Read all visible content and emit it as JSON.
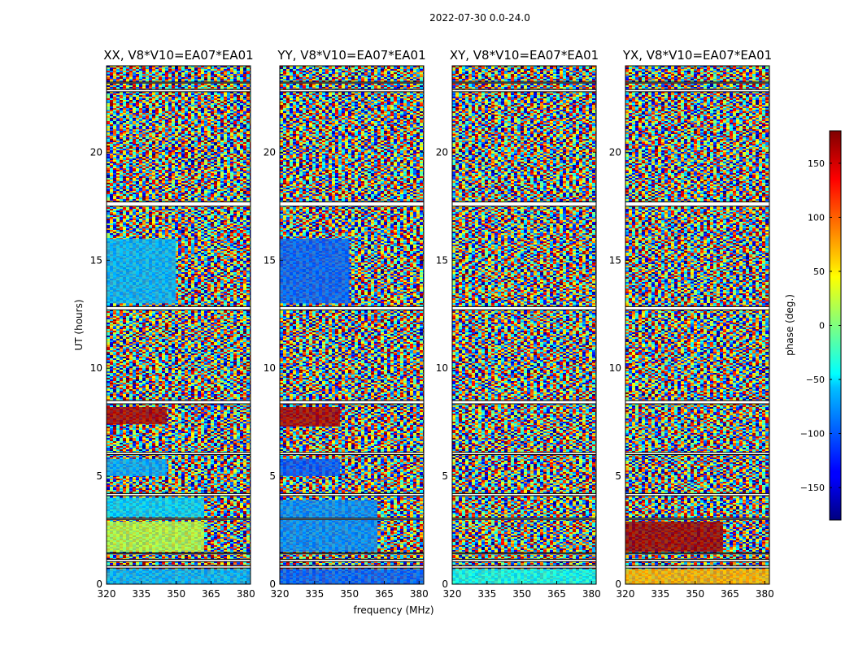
{
  "figure_title": "2022-07-30 0.0-24.0",
  "chart_data": {
    "type": "heatmap",
    "suptitle": "2022-07-30 0.0-24.0",
    "xlabel": "frequency (MHz)",
    "ylabel": "UT (hours)",
    "xlim": [
      320,
      382
    ],
    "ylim": [
      0,
      24
    ],
    "x_ticks": [
      320,
      335,
      350,
      365,
      380
    ],
    "y_ticks": [
      0,
      5,
      10,
      15,
      20
    ],
    "colorbar": {
      "label": "phase (deg.)",
      "range": [
        -180,
        180
      ],
      "ticks": [
        -150,
        -100,
        -50,
        0,
        50,
        100,
        150
      ],
      "colormap": "jet"
    },
    "panels": [
      {
        "title": "XX, V8*V10=EA07*EA01"
      },
      {
        "title": "YY, V8*V10=EA07*EA01"
      },
      {
        "title": "XY, V8*V10=EA07*EA01"
      },
      {
        "title": "YX, V8*V10=EA07*EA01"
      }
    ],
    "data_gaps_hours": [
      [
        0.75,
        0.85
      ],
      [
        1.05,
        1.15
      ],
      [
        1.4,
        1.45
      ],
      [
        3.0,
        3.05
      ],
      [
        4.1,
        4.2
      ],
      [
        6.0,
        6.1
      ],
      [
        8.35,
        8.5
      ],
      [
        12.7,
        12.85
      ],
      [
        17.5,
        17.7
      ],
      [
        22.8,
        22.9
      ],
      [
        23.2,
        23.25
      ]
    ],
    "coherent_segments": [
      {
        "panel": "XX",
        "t_start": 0.0,
        "t_end": 0.7,
        "f_end": 382,
        "phase": -70
      },
      {
        "panel": "XX",
        "t_start": 1.5,
        "t_end": 2.9,
        "f_end": 362,
        "phase": 20
      },
      {
        "panel": "XX",
        "t_start": 3.1,
        "t_end": 4.0,
        "f_end": 362,
        "phase": -60
      },
      {
        "panel": "XX",
        "t_start": 5.0,
        "t_end": 5.8,
        "f_end": 346,
        "phase": -75
      },
      {
        "panel": "XX",
        "t_start": 7.4,
        "t_end": 8.2,
        "f_end": 346,
        "phase": 165
      },
      {
        "panel": "XX",
        "t_start": 13.0,
        "t_end": 16.0,
        "f_end": 350,
        "phase": -70
      },
      {
        "panel": "YY",
        "t_start": 0.0,
        "t_end": 0.7,
        "f_end": 382,
        "phase": -100
      },
      {
        "panel": "YY",
        "t_start": 1.5,
        "t_end": 3.9,
        "f_end": 362,
        "phase": -85
      },
      {
        "panel": "YY",
        "t_start": 5.0,
        "t_end": 5.8,
        "f_end": 346,
        "phase": -105
      },
      {
        "panel": "YY",
        "t_start": 7.3,
        "t_end": 8.2,
        "f_end": 346,
        "phase": 165
      },
      {
        "panel": "YY",
        "t_start": 13.0,
        "t_end": 16.0,
        "f_end": 350,
        "phase": -100
      },
      {
        "panel": "XY",
        "t_start": 0.0,
        "t_end": 0.7,
        "f_end": 382,
        "phase": -40
      },
      {
        "panel": "YX",
        "t_start": 0.0,
        "t_end": 0.7,
        "f_end": 382,
        "phase": 70
      },
      {
        "panel": "YX",
        "t_start": 1.5,
        "t_end": 2.9,
        "f_end": 362,
        "phase": 170
      }
    ]
  }
}
